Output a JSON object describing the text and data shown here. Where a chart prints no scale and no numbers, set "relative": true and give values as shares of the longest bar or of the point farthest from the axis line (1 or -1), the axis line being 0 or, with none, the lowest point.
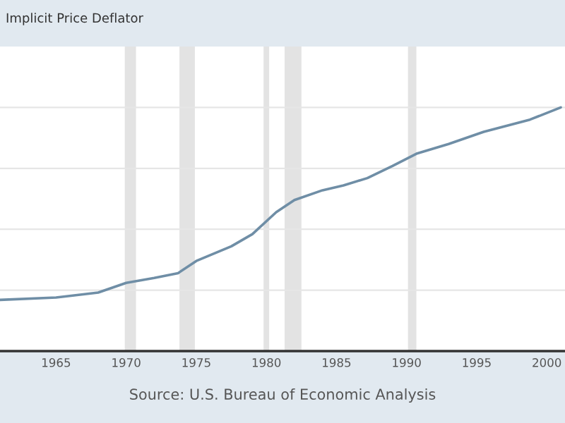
{
  "chart_data": {
    "type": "line",
    "title": "Implicit Price Deflator",
    "relative": true,
    "x": [
      1961,
      1965,
      1968,
      1970,
      1972,
      1973.7,
      1975,
      1977.5,
      1979,
      1980.7,
      1982,
      1984,
      1985.5,
      1987.2,
      1989,
      1990.7,
      1993,
      1995.5,
      1998.8,
      2001
    ],
    "series": [
      {
        "color": "#6f8ea6",
        "values": [
          0.21,
          0.22,
          0.24,
          0.28,
          0.3,
          0.32,
          0.37,
          0.43,
          0.48,
          0.57,
          0.62,
          0.66,
          0.68,
          0.71,
          0.76,
          0.81,
          0.85,
          0.9,
          0.95,
          1.0
        ]
      }
    ],
    "xlim": [
      1961,
      2001.3
    ],
    "xticks": [
      1965,
      1970,
      1975,
      1980,
      1985,
      1990,
      1995,
      2000
    ],
    "bands": [
      {
        "axis": "x",
        "from": 1969.9,
        "to": 1970.7,
        "color": "#e3e3e3"
      },
      {
        "axis": "x",
        "from": 1973.8,
        "to": 1974.9,
        "color": "#e3e3e3"
      },
      {
        "axis": "x",
        "from": 1979.8,
        "to": 1980.2,
        "color": "#e3e3e3"
      },
      {
        "axis": "x",
        "from": 1981.3,
        "to": 1982.5,
        "color": "#e3e3e3"
      },
      {
        "axis": "x",
        "from": 1990.1,
        "to": 1990.7,
        "color": "#e3e3e3"
      }
    ],
    "grid": "y",
    "tick_labels": "x",
    "annotations": [
      "Source: U.S. Bureau of Economic Analysis"
    ]
  }
}
